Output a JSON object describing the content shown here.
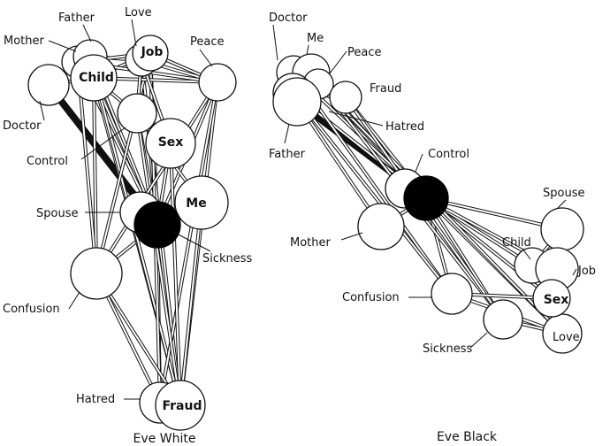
{
  "panels": [
    {
      "id": "eve-white",
      "title": "Eve White",
      "concepts": [
        "Father",
        "Love",
        "Mother",
        "Child",
        "Job",
        "Peace",
        "Doctor",
        "Control",
        "Sex",
        "Spouse",
        "Me",
        "Sickness",
        "Confusion",
        "Hatred",
        "Fraud"
      ]
    },
    {
      "id": "eve-black",
      "title": "Eve Black",
      "concepts": [
        "Doctor",
        "Me",
        "Peace",
        "Fraud",
        "Hatred",
        "Father",
        "Control",
        "Spouse",
        "Mother",
        "Child",
        "Job",
        "Sex",
        "Confusion",
        "Love",
        "Sickness"
      ]
    }
  ]
}
